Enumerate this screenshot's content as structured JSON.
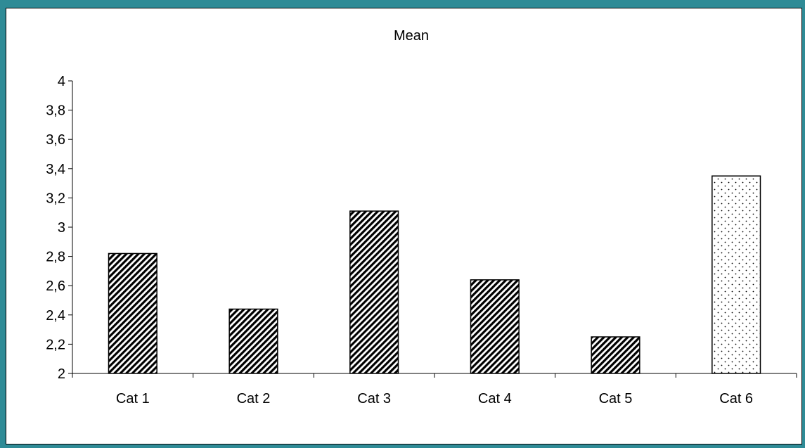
{
  "colors": {
    "frame_border": "#2f8b96",
    "bar_hatch_fg": "#000000",
    "bar_hatch_bg": "#ffffff",
    "axis": "#000000"
  },
  "chart_data": {
    "type": "bar",
    "title": "Mean",
    "xlabel": "",
    "ylabel": "",
    "categories": [
      "Cat 1",
      "Cat 2",
      "Cat 3",
      "Cat 4",
      "Cat 5",
      "Cat 6"
    ],
    "values": [
      2.82,
      2.44,
      3.11,
      2.64,
      2.25,
      3.35
    ],
    "bar_fill_patterns": [
      "diagonal-hatch",
      "diagonal-hatch",
      "diagonal-hatch",
      "diagonal-hatch",
      "diagonal-hatch",
      "dotted"
    ],
    "ylim": [
      2,
      4
    ],
    "yticks": [
      2,
      2.2,
      2.4,
      2.6,
      2.8,
      3,
      3.2,
      3.4,
      3.6,
      3.8,
      4
    ],
    "ytick_labels": [
      "2",
      "2,2",
      "2,4",
      "2,6",
      "2,8",
      "3",
      "3,2",
      "3,4",
      "3,6",
      "3,8",
      "4"
    ],
    "grid": false,
    "legend": "none"
  }
}
